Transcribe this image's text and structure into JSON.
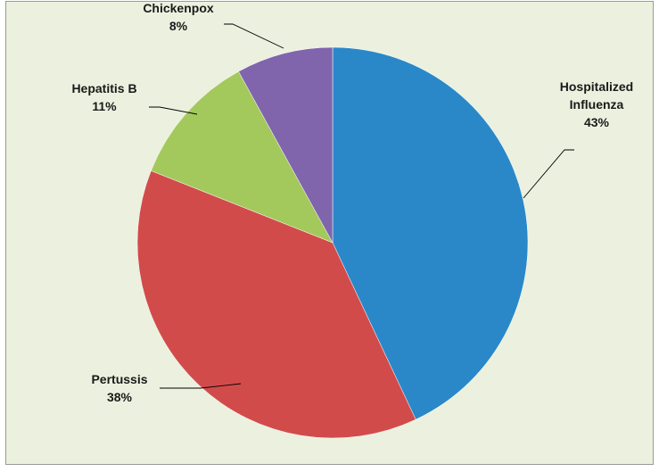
{
  "chart_data": {
    "type": "pie",
    "title": "",
    "slices": [
      {
        "label_lines": [
          "Hospitalized",
          "Influenza"
        ],
        "label": "Hospitalized Influenza",
        "value": 43,
        "value_label": "43%",
        "color": "#2a88c9"
      },
      {
        "label_lines": [
          "Pertussis"
        ],
        "label": "Pertussis",
        "value": 38,
        "value_label": "38%",
        "color": "#d24b4b"
      },
      {
        "label_lines": [
          "Hepatitis B"
        ],
        "label": "Hepatitis B",
        "value": 11,
        "value_label": "11%",
        "color": "#a3c95c"
      },
      {
        "label_lines": [
          "Chickenpox"
        ],
        "label": "Chickenpox",
        "value": 8,
        "value_label": "8%",
        "color": "#8065ad"
      }
    ],
    "start_angle": "12 o'clock, clockwise",
    "legend": "none (labels on leader lines)"
  },
  "colors": {
    "background": "#ebf1de",
    "border": "#9a9a9a"
  }
}
